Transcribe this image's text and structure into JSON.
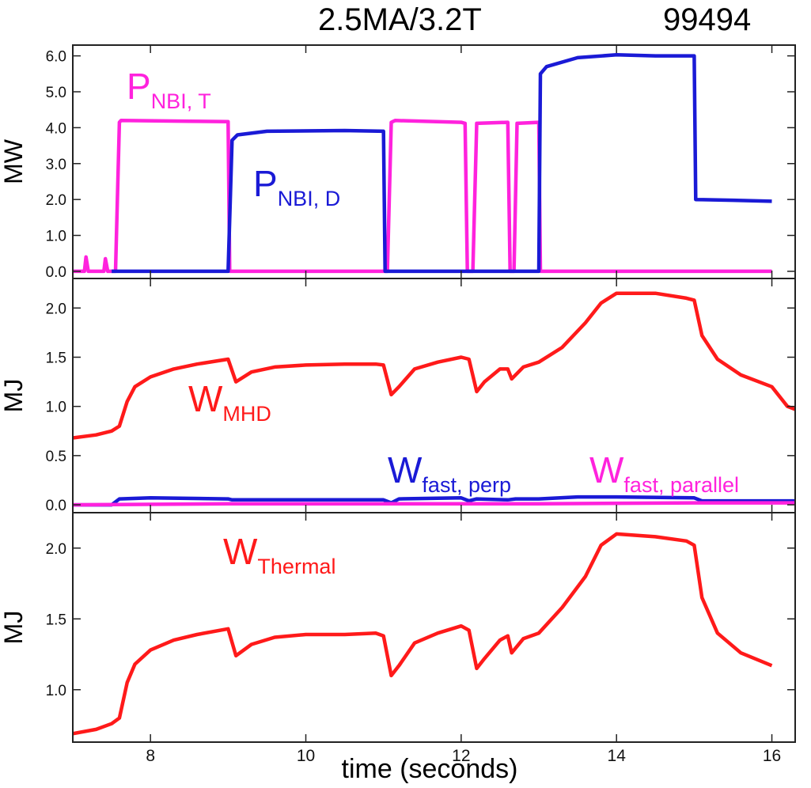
{
  "figure": {
    "title_left": "2.5MA/3.2T",
    "title_right": "99494",
    "xlabel": "time (seconds)",
    "xlim": [
      7.0,
      16.3
    ],
    "xticks": [
      "8",
      "10",
      "12",
      "14",
      "16"
    ],
    "xtick_values": [
      8,
      10,
      12,
      14,
      16
    ]
  },
  "chart_data": [
    {
      "type": "line",
      "panel": "top",
      "ylabel": "MW",
      "ylim": [
        -0.2,
        6.3
      ],
      "yticks": [
        "0.0",
        "1.0",
        "2.0",
        "3.0",
        "4.0",
        "5.0",
        "6.0"
      ],
      "ytick_values": [
        0,
        1,
        2,
        3,
        4,
        5,
        6
      ],
      "series": [
        {
          "name": "P_NBI, T",
          "color": "#ff22dd",
          "points": [
            [
              7.0,
              0
            ],
            [
              7.15,
              0
            ],
            [
              7.17,
              0.4
            ],
            [
              7.2,
              0
            ],
            [
              7.4,
              0
            ],
            [
              7.42,
              0.35
            ],
            [
              7.45,
              0
            ],
            [
              7.55,
              0
            ],
            [
              7.6,
              4.15
            ],
            [
              7.62,
              4.2
            ],
            [
              8.5,
              4.18
            ],
            [
              9.0,
              4.17
            ],
            [
              9.02,
              0
            ],
            [
              11.05,
              0
            ],
            [
              11.1,
              4.15
            ],
            [
              11.15,
              4.2
            ],
            [
              12.0,
              4.15
            ],
            [
              12.05,
              4.12
            ],
            [
              12.08,
              0
            ],
            [
              12.15,
              0
            ],
            [
              12.2,
              4.12
            ],
            [
              12.6,
              4.15
            ],
            [
              12.63,
              0
            ],
            [
              12.68,
              0
            ],
            [
              12.72,
              4.12
            ],
            [
              13.0,
              4.15
            ],
            [
              13.02,
              0
            ],
            [
              16.0,
              0
            ]
          ]
        },
        {
          "name": "P_NBI, D",
          "color": "#1a1ad6",
          "points": [
            [
              7.5,
              0
            ],
            [
              9.0,
              0
            ],
            [
              9.05,
              3.65
            ],
            [
              9.12,
              3.8
            ],
            [
              9.5,
              3.9
            ],
            [
              10.5,
              3.92
            ],
            [
              11.0,
              3.9
            ],
            [
              11.02,
              0
            ],
            [
              13.0,
              0
            ],
            [
              13.02,
              5.5
            ],
            [
              13.1,
              5.7
            ],
            [
              13.5,
              5.95
            ],
            [
              14.0,
              6.03
            ],
            [
              14.5,
              6.0
            ],
            [
              15.0,
              6.0
            ],
            [
              15.02,
              2.0
            ],
            [
              15.5,
              1.98
            ],
            [
              16.0,
              1.95
            ]
          ]
        }
      ],
      "annotations": [
        {
          "base": "P",
          "sub": "NBI, T",
          "color": "#ff22dd"
        },
        {
          "base": "P",
          "sub": "NBI, D",
          "color": "#1a1ad6"
        }
      ]
    },
    {
      "type": "line",
      "panel": "middle",
      "ylabel": "MJ",
      "ylim": [
        -0.08,
        2.3
      ],
      "yticks": [
        "0.0",
        "0.5",
        "1.0",
        "1.5",
        "2.0"
      ],
      "ytick_values": [
        0,
        0.5,
        1.0,
        1.5,
        2.0
      ],
      "series": [
        {
          "name": "W_MHD",
          "color": "#ff1a1a",
          "points": [
            [
              7.0,
              0.68
            ],
            [
              7.3,
              0.71
            ],
            [
              7.5,
              0.75
            ],
            [
              7.6,
              0.8
            ],
            [
              7.7,
              1.05
            ],
            [
              7.8,
              1.2
            ],
            [
              8.0,
              1.3
            ],
            [
              8.3,
              1.38
            ],
            [
              8.6,
              1.43
            ],
            [
              9.0,
              1.48
            ],
            [
              9.1,
              1.25
            ],
            [
              9.3,
              1.35
            ],
            [
              9.6,
              1.4
            ],
            [
              10.0,
              1.42
            ],
            [
              10.5,
              1.43
            ],
            [
              10.9,
              1.43
            ],
            [
              11.0,
              1.42
            ],
            [
              11.1,
              1.12
            ],
            [
              11.2,
              1.2
            ],
            [
              11.4,
              1.38
            ],
            [
              11.7,
              1.45
            ],
            [
              12.0,
              1.5
            ],
            [
              12.1,
              1.48
            ],
            [
              12.2,
              1.15
            ],
            [
              12.3,
              1.25
            ],
            [
              12.5,
              1.38
            ],
            [
              12.6,
              1.38
            ],
            [
              12.65,
              1.28
            ],
            [
              12.8,
              1.4
            ],
            [
              13.0,
              1.45
            ],
            [
              13.3,
              1.6
            ],
            [
              13.6,
              1.85
            ],
            [
              13.8,
              2.05
            ],
            [
              14.0,
              2.15
            ],
            [
              14.5,
              2.15
            ],
            [
              14.9,
              2.1
            ],
            [
              15.0,
              2.08
            ],
            [
              15.1,
              1.72
            ],
            [
              15.3,
              1.48
            ],
            [
              15.6,
              1.32
            ],
            [
              16.0,
              1.2
            ],
            [
              16.2,
              1.0
            ],
            [
              16.3,
              0.97
            ]
          ]
        },
        {
          "name": "W_fast, perp",
          "color": "#1a1ad6",
          "points": [
            [
              7.0,
              0.0
            ],
            [
              7.5,
              0.0
            ],
            [
              7.6,
              0.06
            ],
            [
              8.0,
              0.07
            ],
            [
              9.0,
              0.06
            ],
            [
              9.05,
              0.05
            ],
            [
              11.0,
              0.05
            ],
            [
              11.1,
              0.02
            ],
            [
              11.2,
              0.06
            ],
            [
              12.0,
              0.07
            ],
            [
              12.1,
              0.04
            ],
            [
              12.2,
              0.06
            ],
            [
              12.6,
              0.05
            ],
            [
              12.7,
              0.06
            ],
            [
              13.0,
              0.06
            ],
            [
              13.5,
              0.08
            ],
            [
              14.0,
              0.08
            ],
            [
              15.0,
              0.07
            ],
            [
              15.1,
              0.04
            ],
            [
              16.3,
              0.04
            ]
          ]
        },
        {
          "name": "W_fast, parallel",
          "color": "#ff22dd",
          "points": [
            [
              7.0,
              0.0
            ],
            [
              9.0,
              0.01
            ],
            [
              11.0,
              0.01
            ],
            [
              13.0,
              0.01
            ],
            [
              15.0,
              0.02
            ],
            [
              16.3,
              0.02
            ]
          ]
        }
      ],
      "annotations": [
        {
          "base": "W",
          "sub": "MHD",
          "color": "#ff1a1a"
        },
        {
          "base": "W",
          "sub": "fast, perp",
          "color": "#1a1ad6"
        },
        {
          "base": "W",
          "sub": "fast, parallel",
          "color": "#ff22dd"
        }
      ]
    },
    {
      "type": "line",
      "panel": "bottom",
      "ylabel": "MJ",
      "ylim": [
        0.63,
        2.25
      ],
      "yticks": [
        "1.0",
        "1.5",
        "2.0"
      ],
      "ytick_values": [
        1.0,
        1.5,
        2.0
      ],
      "series": [
        {
          "name": "W_Thermal",
          "color": "#ff1a1a",
          "points": [
            [
              7.0,
              0.69
            ],
            [
              7.3,
              0.72
            ],
            [
              7.5,
              0.76
            ],
            [
              7.6,
              0.8
            ],
            [
              7.7,
              1.05
            ],
            [
              7.8,
              1.18
            ],
            [
              8.0,
              1.28
            ],
            [
              8.3,
              1.35
            ],
            [
              8.6,
              1.39
            ],
            [
              9.0,
              1.43
            ],
            [
              9.1,
              1.24
            ],
            [
              9.3,
              1.32
            ],
            [
              9.6,
              1.37
            ],
            [
              10.0,
              1.39
            ],
            [
              10.5,
              1.39
            ],
            [
              10.9,
              1.4
            ],
            [
              11.0,
              1.38
            ],
            [
              11.1,
              1.1
            ],
            [
              11.2,
              1.17
            ],
            [
              11.4,
              1.33
            ],
            [
              11.7,
              1.4
            ],
            [
              12.0,
              1.45
            ],
            [
              12.1,
              1.42
            ],
            [
              12.2,
              1.15
            ],
            [
              12.3,
              1.22
            ],
            [
              12.5,
              1.35
            ],
            [
              12.6,
              1.38
            ],
            [
              12.65,
              1.26
            ],
            [
              12.8,
              1.36
            ],
            [
              13.0,
              1.4
            ],
            [
              13.3,
              1.58
            ],
            [
              13.6,
              1.8
            ],
            [
              13.8,
              2.02
            ],
            [
              14.0,
              2.1
            ],
            [
              14.5,
              2.08
            ],
            [
              14.9,
              2.05
            ],
            [
              15.0,
              2.02
            ],
            [
              15.1,
              1.65
            ],
            [
              15.3,
              1.4
            ],
            [
              15.6,
              1.26
            ],
            [
              16.0,
              1.17
            ]
          ]
        }
      ],
      "annotations": [
        {
          "base": "W",
          "sub": "Thermal",
          "color": "#ff1a1a"
        }
      ]
    }
  ]
}
